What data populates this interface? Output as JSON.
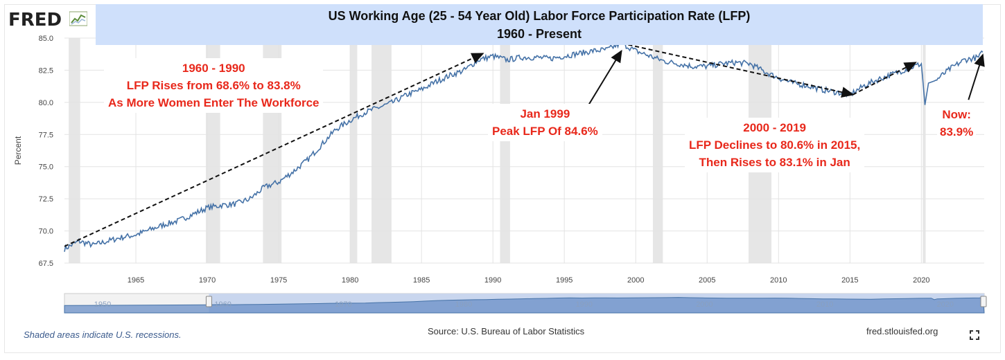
{
  "logo": {
    "text": "FRED"
  },
  "chart_data": {
    "type": "line",
    "title": "US Working Age (25 - 54 Year Old) Labor Force Participation Rate (LFP)",
    "subtitle": "1960 - Present",
    "ylabel": "Percent",
    "xlabel": "",
    "ylim": [
      67.5,
      85.0
    ],
    "xlim": [
      1960.0,
      2024.4
    ],
    "yticks": [
      "67.5",
      "70.0",
      "72.5",
      "75.0",
      "77.5",
      "80.0",
      "82.5",
      "85.0"
    ],
    "xticks": [
      "1965",
      "1970",
      "1975",
      "1980",
      "1985",
      "1990",
      "1995",
      "2000",
      "2005",
      "2010",
      "2015",
      "2020"
    ],
    "grid": true,
    "series": [
      {
        "color": "#4572a7",
        "x": [
          1960.0,
          1961.0,
          1962.0,
          1963.0,
          1964.0,
          1965.0,
          1966.0,
          1967.0,
          1968.0,
          1969.0,
          1970.0,
          1971.0,
          1972.0,
          1973.0,
          1974.0,
          1975.0,
          1976.0,
          1977.0,
          1978.0,
          1979.0,
          1980.0,
          1981.0,
          1982.0,
          1983.0,
          1984.0,
          1985.0,
          1986.0,
          1987.0,
          1988.0,
          1989.0,
          1990.0,
          1991.0,
          1992.0,
          1993.0,
          1994.0,
          1995.0,
          1996.0,
          1997.0,
          1998.0,
          1999.0,
          2000.0,
          2001.0,
          2002.0,
          2003.0,
          2004.0,
          2005.0,
          2006.0,
          2007.0,
          2008.0,
          2009.0,
          2010.0,
          2011.0,
          2012.0,
          2013.0,
          2014.0,
          2015.0,
          2016.0,
          2017.0,
          2018.0,
          2019.0,
          2020.0,
          2020.25,
          2020.5,
          2021.0,
          2022.0,
          2023.0,
          2024.0,
          2024.3
        ],
        "values": [
          68.6,
          69.2,
          68.9,
          69.2,
          69.5,
          69.7,
          70.1,
          70.5,
          70.8,
          71.3,
          71.8,
          72.0,
          72.1,
          72.5,
          73.4,
          73.8,
          74.6,
          75.5,
          76.7,
          77.9,
          78.6,
          79.2,
          79.6,
          80.0,
          80.6,
          81.0,
          81.6,
          82.1,
          82.5,
          83.3,
          83.6,
          83.3,
          83.5,
          83.5,
          83.4,
          83.6,
          83.8,
          84.0,
          84.1,
          84.6,
          84.0,
          83.6,
          83.2,
          83.0,
          82.8,
          82.8,
          83.0,
          83.1,
          83.0,
          82.4,
          81.9,
          81.5,
          81.3,
          81.0,
          80.8,
          80.6,
          81.3,
          81.8,
          82.2,
          82.6,
          83.0,
          79.8,
          81.5,
          81.7,
          82.6,
          83.3,
          83.5,
          83.9
        ]
      }
    ],
    "recessions": [
      [
        1960.3,
        1961.1
      ],
      [
        1969.9,
        1970.9
      ],
      [
        1973.9,
        1975.2
      ],
      [
        1980.0,
        1980.5
      ],
      [
        1981.5,
        1982.9
      ],
      [
        1990.5,
        1991.2
      ],
      [
        2001.2,
        2001.9
      ],
      [
        2007.9,
        2009.5
      ],
      [
        2020.1,
        2020.3
      ]
    ],
    "trendlines": [
      {
        "from": [
          1960.0,
          68.8
        ],
        "to": [
          1989.3,
          83.8
        ]
      },
      {
        "from": [
          1999.0,
          84.6
        ],
        "to": [
          2015.2,
          80.6
        ]
      },
      {
        "from": [
          2015.2,
          80.6
        ],
        "to": [
          2019.6,
          83.1
        ]
      }
    ],
    "arrows": [
      {
        "from": [
          1996.7,
          79.8
        ],
        "to": [
          1999.0,
          84.0
        ]
      },
      {
        "from": [
          2023.3,
          80.2
        ],
        "to": [
          2024.3,
          83.7
        ]
      }
    ],
    "annotations": [
      {
        "lines": [
          "1960 - 1990",
          "LFP Rises from 68.6% to 83.8%",
          "As More Women Enter The Workforce"
        ]
      },
      {
        "lines": [
          "Jan 1999",
          "Peak LFP Of 84.6%"
        ]
      },
      {
        "lines": [
          "2000 - 2019",
          "LFP Declines to 80.6% in 2015,",
          "Then Rises to 83.1% in Jan"
        ]
      },
      {
        "lines": [
          "Now:",
          "83.9%"
        ]
      }
    ],
    "navigator": {
      "labels": [
        "1950",
        "1960",
        "1970",
        "1980",
        "1990",
        "2000",
        "2010",
        "2020"
      ],
      "range_start": 1948.0,
      "range_end": 2024.4
    }
  },
  "footer": {
    "recession_note": "Shaded areas indicate U.S. recessions.",
    "source": "Source: U.S. Bureau of Labor Statistics",
    "site": "fred.stlouisfed.org"
  },
  "colors": {
    "line": "#4572a7",
    "recession": "#e6e6e6",
    "annotation": "#e8281b",
    "banner": "#cfe0fb"
  }
}
